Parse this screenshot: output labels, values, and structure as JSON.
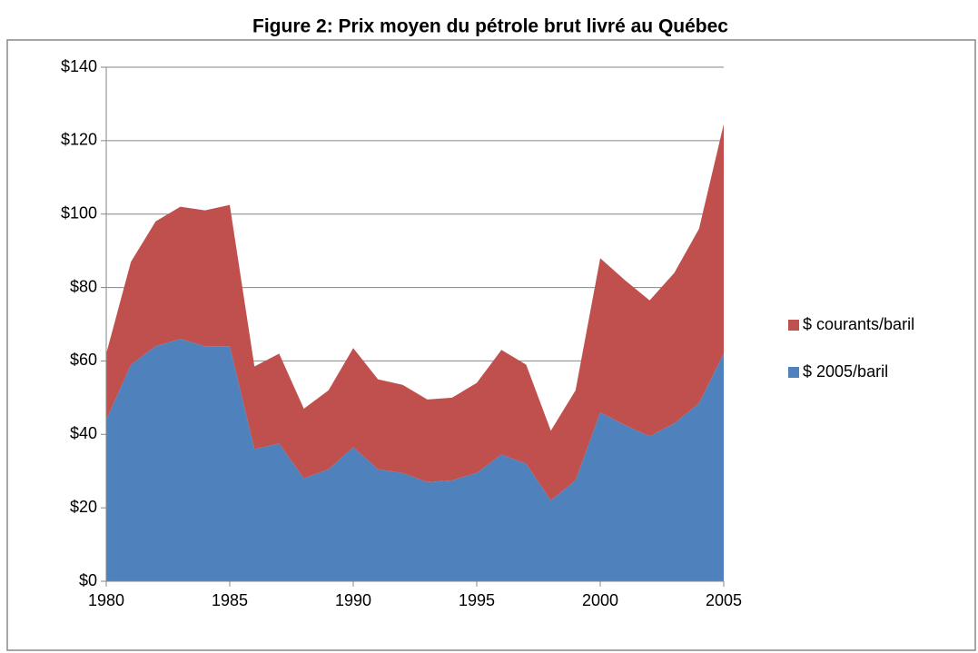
{
  "chart_data": {
    "type": "stacked_area",
    "title": "Figure 2: Prix moyen du pétrole brut livré au Québec",
    "x": [
      1980,
      1981,
      1982,
      1983,
      1984,
      1985,
      1986,
      1987,
      1988,
      1989,
      1990,
      1991,
      1992,
      1993,
      1994,
      1995,
      1996,
      1997,
      1998,
      1999,
      2000,
      2001,
      2002,
      2003,
      2004,
      2005
    ],
    "series": [
      {
        "name": "$ 2005/baril",
        "color": "#4f81bd",
        "values": [
          44,
          59,
          64,
          66,
          64,
          64,
          36,
          37.5,
          28,
          30.5,
          36.5,
          30.5,
          29.5,
          27,
          27.5,
          29.5,
          34.5,
          32,
          22,
          27.5,
          46,
          42.5,
          39.5,
          43,
          48.5,
          62
        ]
      },
      {
        "name": "$ courants/baril",
        "color": "#c0504d",
        "values": [
          18,
          28,
          34,
          36,
          37,
          38.5,
          22.5,
          24.5,
          19,
          21.5,
          27,
          24.5,
          24,
          22.5,
          22.5,
          24.5,
          28.5,
          27,
          19,
          24.5,
          42,
          39.5,
          37,
          41,
          47.5,
          62.5
        ]
      }
    ],
    "xlim": [
      1980,
      2005
    ],
    "xticks": [
      1980,
      1985,
      1990,
      1995,
      2000,
      2005
    ],
    "ylim": [
      0,
      140
    ],
    "yticks": [
      {
        "value": 0,
        "label": "$0"
      },
      {
        "value": 20,
        "label": "$20"
      },
      {
        "value": 40,
        "label": "$40"
      },
      {
        "value": 60,
        "label": "$60"
      },
      {
        "value": 80,
        "label": "$80"
      },
      {
        "value": 100,
        "label": "$100"
      },
      {
        "value": 120,
        "label": "$120"
      },
      {
        "value": 140,
        "label": "$140"
      }
    ],
    "grid": true,
    "legend": "right"
  }
}
